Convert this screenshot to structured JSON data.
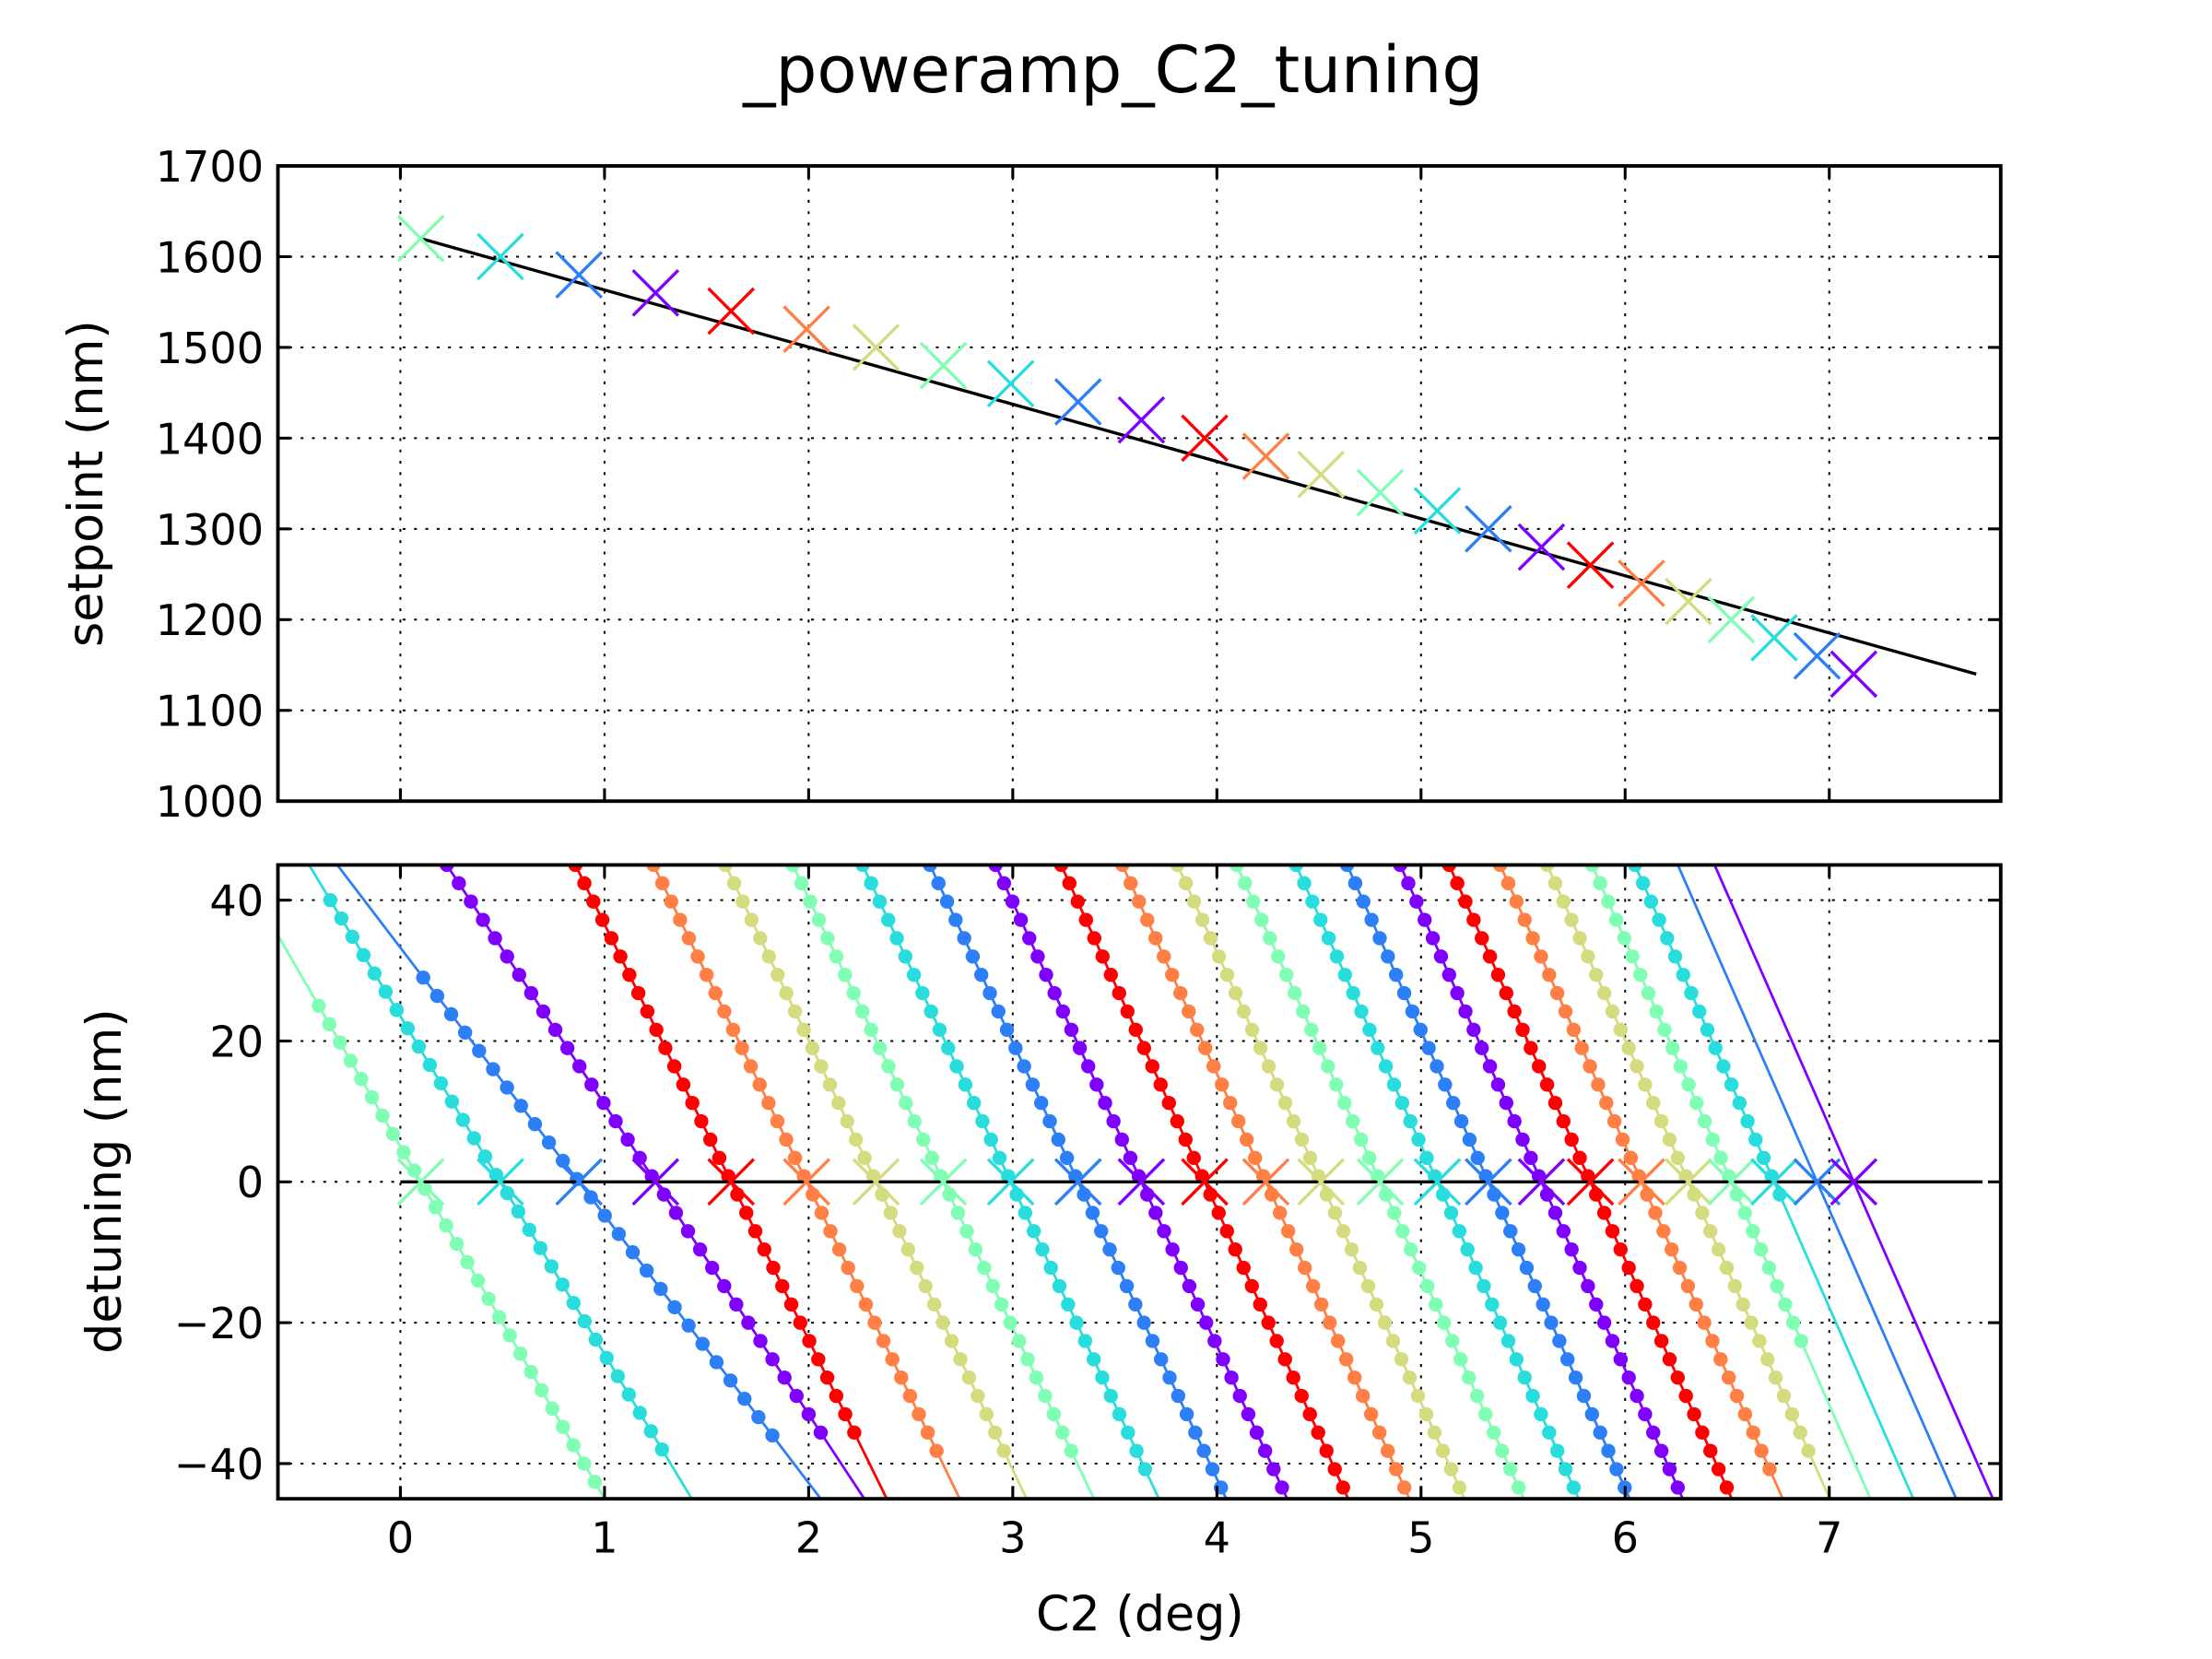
{
  "chart_data": [
    {
      "type": "scatter",
      "title": "_poweramp_C2_tuning",
      "xlabel": "",
      "ylabel": "setpoint (nm)",
      "xlim": [
        -0.6,
        7.84
      ],
      "ylim": [
        1000,
        1700
      ],
      "yticks": [
        "1000",
        "1100",
        "1200",
        "1300",
        "1400",
        "1500",
        "1600",
        "1700"
      ],
      "xticks": [
        0,
        1,
        2,
        3,
        4,
        5,
        6,
        7
      ],
      "grid": true,
      "marker": "x",
      "colors": [
        "#80ffb4",
        "#2adddd",
        "#2c7ff7",
        "#8000ff",
        "#ff0000",
        "#ff7f45",
        "#d4dc7f"
      ],
      "points": [
        {
          "x": 0.1,
          "y": 1620
        },
        {
          "x": 0.49,
          "y": 1600
        },
        {
          "x": 0.875,
          "y": 1580
        },
        {
          "x": 1.25,
          "y": 1560
        },
        {
          "x": 1.62,
          "y": 1540
        },
        {
          "x": 1.99,
          "y": 1520
        },
        {
          "x": 2.33,
          "y": 1500
        },
        {
          "x": 2.66,
          "y": 1480
        },
        {
          "x": 2.99,
          "y": 1460
        },
        {
          "x": 3.32,
          "y": 1440
        },
        {
          "x": 3.63,
          "y": 1420
        },
        {
          "x": 3.94,
          "y": 1400
        },
        {
          "x": 4.24,
          "y": 1380
        },
        {
          "x": 4.51,
          "y": 1360
        },
        {
          "x": 4.8,
          "y": 1340
        },
        {
          "x": 5.08,
          "y": 1320
        },
        {
          "x": 5.33,
          "y": 1300
        },
        {
          "x": 5.59,
          "y": 1280
        },
        {
          "x": 5.83,
          "y": 1260
        },
        {
          "x": 6.08,
          "y": 1240
        },
        {
          "x": 6.31,
          "y": 1220
        },
        {
          "x": 6.52,
          "y": 1200
        },
        {
          "x": 6.73,
          "y": 1180
        },
        {
          "x": 6.94,
          "y": 1160
        },
        {
          "x": 7.12,
          "y": 1140
        }
      ],
      "fit_line": {
        "x": [
          0.1,
          7.72
        ],
        "y": [
          1620,
          1140
        ],
        "color": "#000000"
      }
    },
    {
      "type": "scatter",
      "xlabel": "C2 (deg)",
      "ylabel": "detuning (nm)",
      "xlim": [
        -0.6,
        7.84
      ],
      "ylim": [
        -45,
        45
      ],
      "yticks": [
        "−40",
        "−20",
        "0",
        "20",
        "40"
      ],
      "xticks": [
        "0",
        "1",
        "2",
        "3",
        "4",
        "5",
        "6",
        "7"
      ],
      "grid": true,
      "zero_line_x": [
        0.0,
        7.75
      ],
      "series": [
        {
          "x0": 0.1,
          "slope": -50,
          "dots": [
            -43,
            25
          ]
        },
        {
          "x0": 0.49,
          "slope": -48,
          "dots": [
            -40,
            40
          ]
        },
        {
          "x0": 0.875,
          "slope": -38,
          "dots": [
            -37,
            29
          ]
        },
        {
          "x0": 1.25,
          "slope": -44,
          "dots": [
            -38,
            45
          ]
        },
        {
          "x0": 1.62,
          "slope": -59,
          "dots": [
            -38,
            45
          ]
        },
        {
          "x0": 1.99,
          "slope": -60,
          "dots": [
            -40,
            45
          ]
        },
        {
          "x0": 2.33,
          "slope": -61,
          "dots": [
            -40,
            45
          ]
        },
        {
          "x0": 2.66,
          "slope": -61,
          "dots": [
            -40,
            45
          ]
        },
        {
          "x0": 2.99,
          "slope": -62,
          "dots": [
            -42,
            45
          ]
        },
        {
          "x0": 3.32,
          "slope": -62,
          "dots": [
            -45,
            45
          ]
        },
        {
          "x0": 3.63,
          "slope": -63,
          "dots": [
            -45,
            45
          ]
        },
        {
          "x0": 3.94,
          "slope": -64,
          "dots": [
            -45,
            45
          ]
        },
        {
          "x0": 4.24,
          "slope": -64,
          "dots": [
            -45,
            45
          ]
        },
        {
          "x0": 4.51,
          "slope": -64,
          "dots": [
            -45,
            45
          ]
        },
        {
          "x0": 4.8,
          "slope": -64,
          "dots": [
            -45,
            45
          ]
        },
        {
          "x0": 5.08,
          "slope": -65,
          "dots": [
            -45,
            45
          ]
        },
        {
          "x0": 5.33,
          "slope": -65,
          "dots": [
            -45,
            45
          ]
        },
        {
          "x0": 5.59,
          "slope": -65,
          "dots": [
            -45,
            45
          ]
        },
        {
          "x0": 5.83,
          "slope": -65,
          "dots": [
            -45,
            45
          ]
        },
        {
          "x0": 6.08,
          "slope": -65,
          "dots": [
            -42,
            45
          ]
        },
        {
          "x0": 6.31,
          "slope": -65,
          "dots": [
            -40,
            45
          ]
        },
        {
          "x0": 6.52,
          "slope": -66,
          "dots": [
            -25,
            45
          ]
        },
        {
          "x0": 6.73,
          "slope": -66,
          "dots": [
            -2,
            45
          ]
        },
        {
          "x0": 6.94,
          "slope": -66,
          "dots": [
            0,
            0
          ]
        },
        {
          "x0": 7.12,
          "slope": -66,
          "dots": [
            0,
            0
          ]
        }
      ]
    }
  ]
}
